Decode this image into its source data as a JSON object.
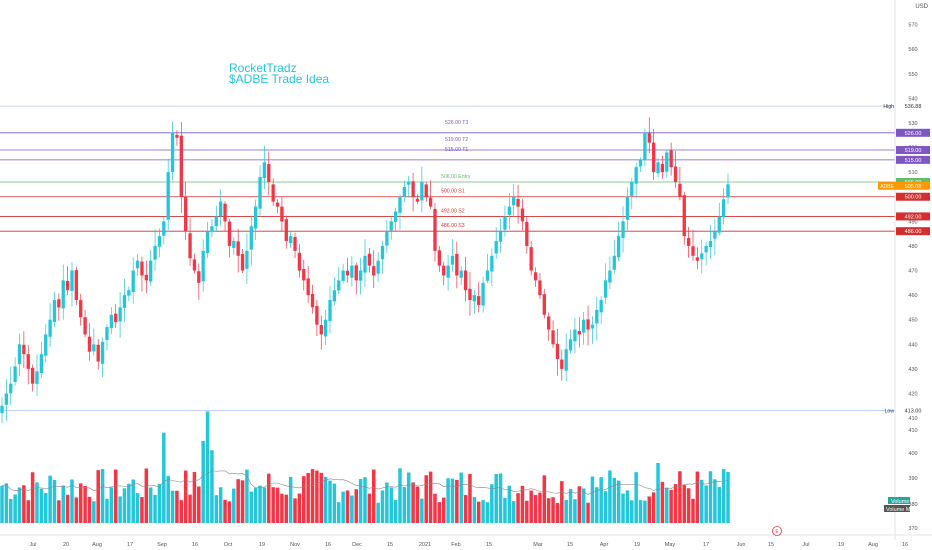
{
  "currency": "USD",
  "idea": {
    "author": "RocketTradz",
    "title": "$ADBE Trade Idea"
  },
  "colors": {
    "up": "#26c6da",
    "down": "#f23645",
    "target": "#7e57c2",
    "stop": "#d32f2f",
    "entry": "#66bb6a",
    "label_bg": "#ff9800"
  },
  "chart_data": {
    "type": "candlestick",
    "symbol": "ADBE",
    "price_axis": {
      "range": [
        408,
        580
      ],
      "ticks": [
        570,
        560,
        550,
        540,
        530,
        520,
        510,
        490,
        480,
        470,
        460,
        450,
        440,
        430,
        420,
        410
      ]
    },
    "volume_axis": {
      "ticks": [
        410,
        400,
        390,
        380,
        370
      ]
    },
    "time_axis": [
      "Jul",
      "20",
      "Aug",
      "17",
      "Sep",
      "16",
      "Oct",
      "19",
      "Nov",
      "16",
      "Dec",
      "15",
      "2021",
      "Feb",
      "15",
      "Mar",
      "15",
      "Apr",
      "19",
      "May",
      "17",
      "Jun",
      "15",
      "Jul",
      "19",
      "Aug",
      "16"
    ],
    "levels": [
      {
        "label": "526.00 T3",
        "price": 526.0,
        "tag": "526.00",
        "role": "target"
      },
      {
        "label": "519.00 T2",
        "price": 519.0,
        "tag": "519.00",
        "role": "target"
      },
      {
        "label": "515.00 T1",
        "price": 515.0,
        "tag": "515.00",
        "role": "target"
      },
      {
        "label": "506.00 Entry",
        "price": 506.0,
        "tag": "506.00",
        "role": "entry"
      },
      {
        "label": "500.00 S1",
        "price": 500.0,
        "tag": "500.00",
        "role": "stop"
      },
      {
        "label": "492.00 S2",
        "price": 492.0,
        "tag": "492.00",
        "role": "stop"
      },
      {
        "label": "486.00 S3",
        "price": 486.0,
        "tag": "486.00",
        "role": "stop"
      }
    ],
    "high": {
      "label": "High",
      "value": 536.88,
      "tag": "536.88"
    },
    "low": {
      "label": "Low",
      "value": 413.0,
      "tag": "413.00"
    },
    "last": {
      "symbol": "ADBE",
      "value": 505.08,
      "tag": "505.08"
    },
    "legend": [
      "Volume",
      "Volume MA"
    ],
    "closes": [
      415,
      420,
      424,
      431,
      440,
      436,
      430,
      424,
      429,
      436,
      444,
      450,
      458,
      455,
      466,
      462,
      470,
      458,
      451,
      444,
      437,
      440,
      433,
      441,
      447,
      452,
      449,
      455,
      460,
      462,
      470,
      474,
      468,
      466,
      474,
      480,
      484,
      490,
      510,
      526,
      524,
      500,
      486,
      475,
      470,
      465,
      478,
      486,
      488,
      492,
      498,
      490,
      480,
      482,
      476,
      470,
      478,
      488,
      496,
      508,
      514,
      506,
      498,
      496,
      490,
      482,
      484,
      478,
      470,
      466,
      460,
      455,
      448,
      444,
      450,
      458,
      462,
      466,
      470,
      468,
      472,
      466,
      470,
      476,
      472,
      468,
      474,
      480,
      486,
      490,
      494,
      500,
      504,
      506,
      500,
      498,
      506,
      500,
      496,
      478,
      472,
      468,
      472,
      476,
      468,
      470,
      462,
      458,
      460,
      456,
      465,
      470,
      476,
      482,
      486,
      492,
      496,
      500,
      496,
      490,
      480,
      470,
      466,
      460,
      452,
      446,
      440,
      434,
      430,
      438,
      442,
      446,
      444,
      450,
      446,
      448,
      454,
      458,
      466,
      470,
      476,
      484,
      490,
      500,
      506,
      512,
      515,
      526,
      522,
      510,
      514,
      510,
      518,
      512,
      506,
      500,
      484,
      480,
      476,
      474,
      477,
      480,
      482,
      486,
      492,
      499,
      505.08
    ]
  }
}
